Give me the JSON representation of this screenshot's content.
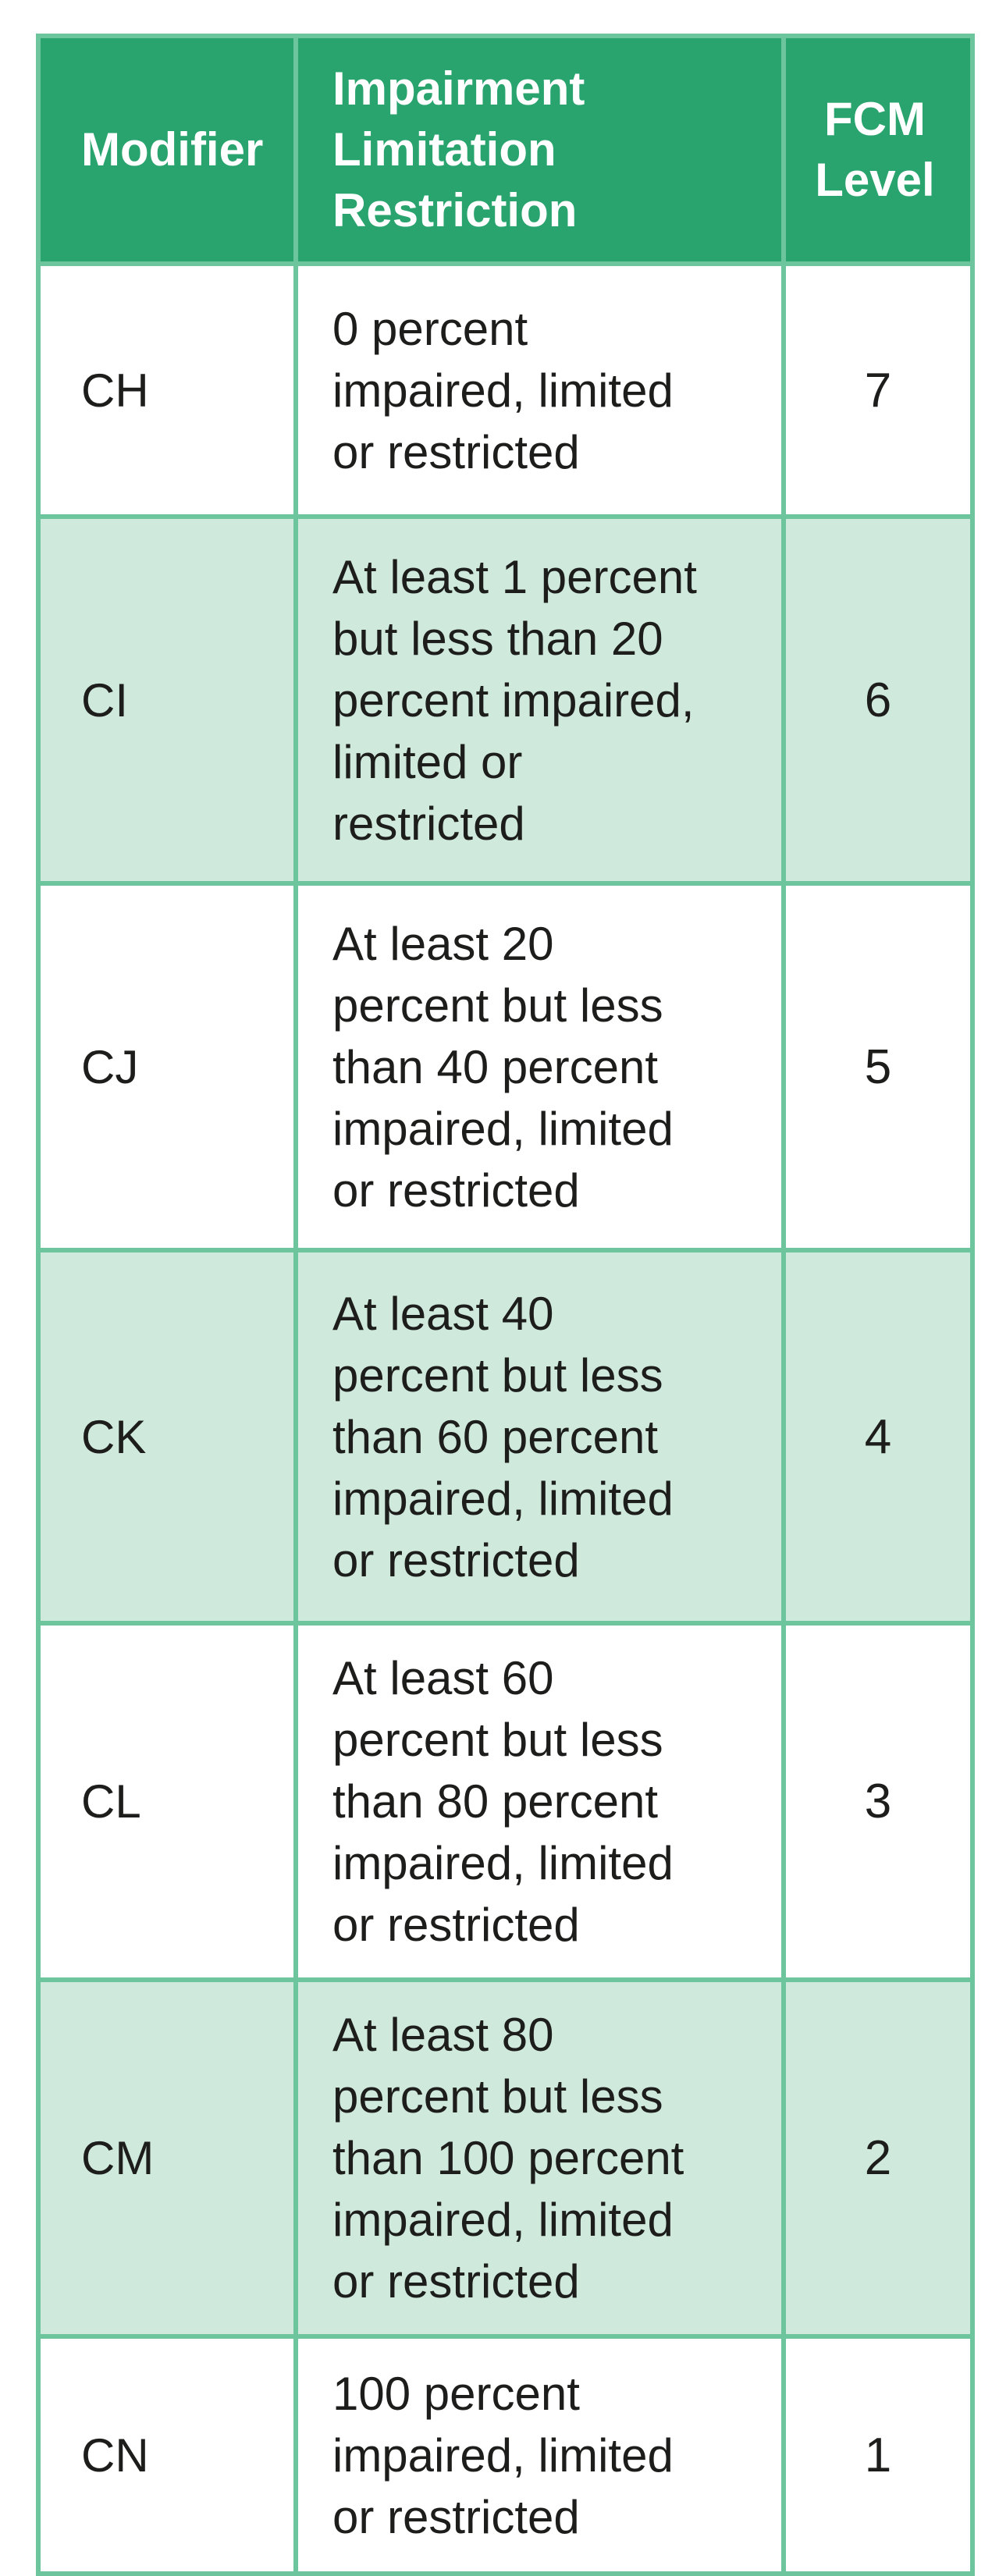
{
  "colors": {
    "header_bg": "#29a46e",
    "row_alt_bg": "#cfe9dc",
    "border": "#6cc59c",
    "header_text": "#ffffff",
    "body_text": "#1d1d1b",
    "page_bg": "#ffffff"
  },
  "table": {
    "columns": {
      "modifier": "Modifier",
      "restriction": "Impairment\nLimitation\nRestriction",
      "fcm": "FCM\nLevel"
    },
    "rows": [
      {
        "modifier": "CH",
        "restriction": "0 percent\nimpaired, limited\nor restricted",
        "fcm_level": "7"
      },
      {
        "modifier": "CI",
        "restriction": "At least 1 percent\nbut less than 20\npercent impaired,\nlimited or\nrestricted",
        "fcm_level": "6"
      },
      {
        "modifier": "CJ",
        "restriction": "At least 20\npercent but less\nthan 40 percent\nimpaired, limited\nor restricted",
        "fcm_level": "5"
      },
      {
        "modifier": "CK",
        "restriction": "At least 40\npercent but less\nthan 60 percent\nimpaired, limited\nor restricted",
        "fcm_level": "4"
      },
      {
        "modifier": "CL",
        "restriction": "At least 60\npercent but less\nthan 80 percent\nimpaired, limited\nor restricted",
        "fcm_level": "3"
      },
      {
        "modifier": "CM",
        "restriction": "At least 80\npercent but less\nthan 100 percent\nimpaired, limited\nor restricted",
        "fcm_level": "2"
      },
      {
        "modifier": "CN",
        "restriction": "100 percent\nimpaired, limited\nor restricted",
        "fcm_level": "1"
      }
    ]
  },
  "chart_data": {
    "type": "table",
    "columns": [
      "Modifier",
      "Impairment Limitation Restriction",
      "FCM Level"
    ],
    "rows": [
      [
        "CH",
        "0 percent impaired, limited or restricted",
        7
      ],
      [
        "CI",
        "At least 1 percent but less than 20 percent impaired, limited or restricted",
        6
      ],
      [
        "CJ",
        "At least 20 percent but less than 40 percent impaired, limited or restricted",
        5
      ],
      [
        "CK",
        "At least 40 percent but less than 60 percent impaired, limited or restricted",
        4
      ],
      [
        "CL",
        "At least 60 percent but less than 80 percent impaired, limited or restricted",
        3
      ],
      [
        "CM",
        "At least 80 percent but less than 100 percent impaired, limited or restricted",
        2
      ],
      [
        "CN",
        "100 percent impaired, limited or restricted",
        1
      ]
    ]
  }
}
